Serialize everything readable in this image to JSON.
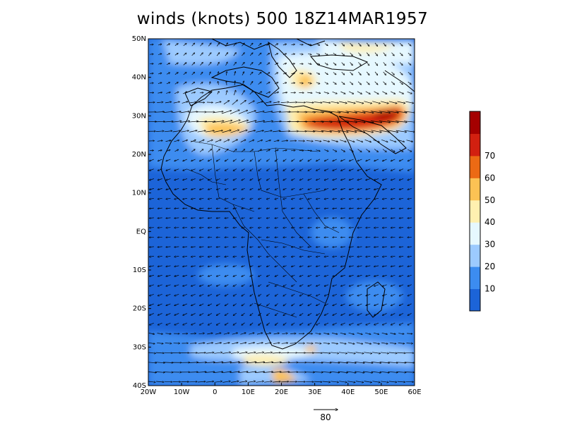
{
  "title": "winds (knots) 500 18Z14MAR1957",
  "chart_data": {
    "type": "vector_field",
    "variable": "winds (knots)",
    "level": "500",
    "time": "18Z14MAR1957",
    "lon_range": [
      -20,
      60
    ],
    "lat_range": [
      -40,
      50
    ],
    "x_ticks": [
      "20W",
      "10W",
      "0",
      "10E",
      "20E",
      "30E",
      "40E",
      "50E",
      "60E"
    ],
    "y_ticks": [
      "50N",
      "40N",
      "30N",
      "20N",
      "10N",
      "EQ",
      "10S",
      "20S",
      "30S",
      "40S"
    ],
    "colorbar": {
      "labels": [
        "10",
        "20",
        "30",
        "40",
        "50",
        "60",
        "70"
      ],
      "levels": [
        0,
        10,
        20,
        30,
        40,
        50,
        60,
        70,
        80
      ],
      "colors": [
        "#1c64d8",
        "#3c8cf0",
        "#9ccaff",
        "#e6f8ff",
        "#fff0b0",
        "#fcc254",
        "#ec6a14",
        "#d22010",
        "#a40000"
      ]
    },
    "reference_vector": {
      "label": "80",
      "value": 80
    }
  },
  "palette": {
    "map_background": "#3272dc",
    "coastline": "#000000"
  }
}
